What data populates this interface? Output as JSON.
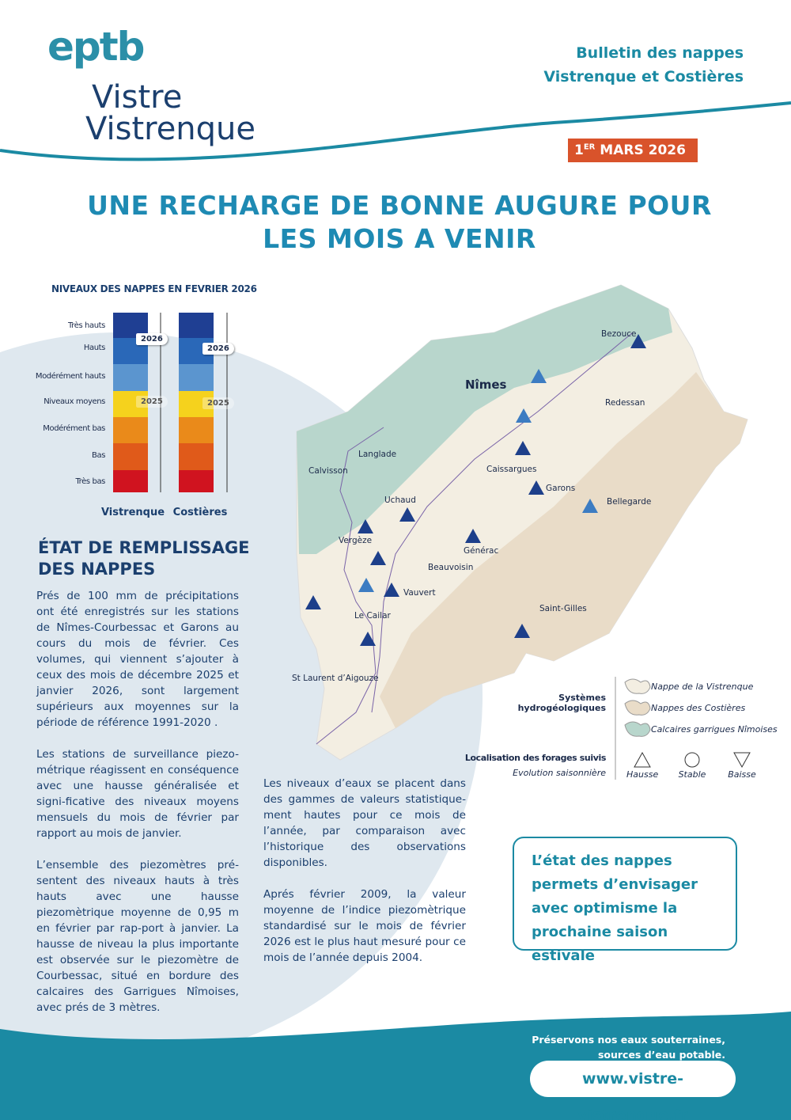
{
  "logo": {
    "mark": "eptb",
    "line1": "Vistre",
    "line2": "Vistrenque"
  },
  "header": {
    "title_line1": "Bulletin des nappes",
    "title_line2": "Vistrenque et Costières",
    "date_day": "1",
    "date_sup": "ER",
    "date_rest": "MARS 2026"
  },
  "headline": {
    "line1": "UNE RECHARGE DE BONNE AUGURE POUR",
    "line2": "LES MOIS A VENIR"
  },
  "levels": {
    "title": "NIVEAUX DES NAPPES EN FEVRIER 2026",
    "scale": [
      "Très hauts",
      "Hauts",
      "Modérément hauts",
      "Niveaux moyens",
      "Modérément bas",
      "Bas",
      "Très bas"
    ],
    "columns": [
      {
        "name": "Vistrenque",
        "current": "2026",
        "previous": "2025"
      },
      {
        "name": "Costières",
        "current": "2026",
        "previous": "2025"
      }
    ]
  },
  "section": {
    "title_line1": "ÉTAT DE REMPLISSAGE",
    "title_line2": "DES NAPPES",
    "left_paragraphs": [
      "Prés de 100 mm de précipitations ont été enregistrés sur les stations de Nîmes-Courbessac et Garons au cours du mois de février. Ces volumes, qui viennent s’ajouter à ceux des mois de décembre 2025 et janvier 2026, sont largement supérieurs aux moyennes sur la période de référence 1991-2020 .",
      "Les stations de surveillance piezo-métrique réagissent en conséquence avec une hausse généralisée et signi-ficative des niveaux moyens mensuels du mois de février par rapport au mois de janvier.",
      "L’ensemble des piezomètres pré-sentent des niveaux hauts à très hauts avec une hausse piezomètrique moyenne de 0,95 m en février par rap-port à janvier. La hausse de niveau la plus importante est observée sur le piezomètre de Courbessac, situé en bordure des calcaires des Garrigues Nîmoises, avec prés de 3 mètres."
    ],
    "middle_paragraphs": [
      "Les niveaux d’eaux se placent dans des gammes de valeurs statistique-ment hautes pour ce mois de l’année, par comparaison avec l’historique des observations disponibles.",
      "Aprés février 2009, la valeur moyenne de l’indice piezomètrique standardisé sur le mois de février 2026 est le plus haut mesuré pour ce mois de l’année depuis 2004."
    ]
  },
  "map": {
    "places": [
      "Bezouce",
      "Nîmes",
      "Redessan",
      "Langlade",
      "Calvisson",
      "Caissargues",
      "Garons",
      "Bellegarde",
      "Uchaud",
      "Vergèze",
      "Générac",
      "Beauvoisin",
      "Vauvert",
      "Le Cailar",
      "Saint-Gilles",
      "St Laurent d’Aigouze"
    ],
    "legend": {
      "systems_title": "Systèmes hydrogéologiques",
      "systems": [
        "Nappe de la Vistrenque",
        "Nappes des Costières",
        "Calcaires garrigues Nîmoises"
      ],
      "wells_title": "Localisation des forages suivis",
      "wells_subtitle": "Evolution saisonnière",
      "trends": [
        "Hausse",
        "Stable",
        "Baisse"
      ]
    }
  },
  "callout": "L’état des nappes permets d’envisager avec optimisme la prochaine saison estivale",
  "footer": {
    "line1": "Préservons nos eaux souterraines,",
    "line2": "sources d’eau potable.",
    "url": "www.vistre-vistrenque.fr"
  }
}
